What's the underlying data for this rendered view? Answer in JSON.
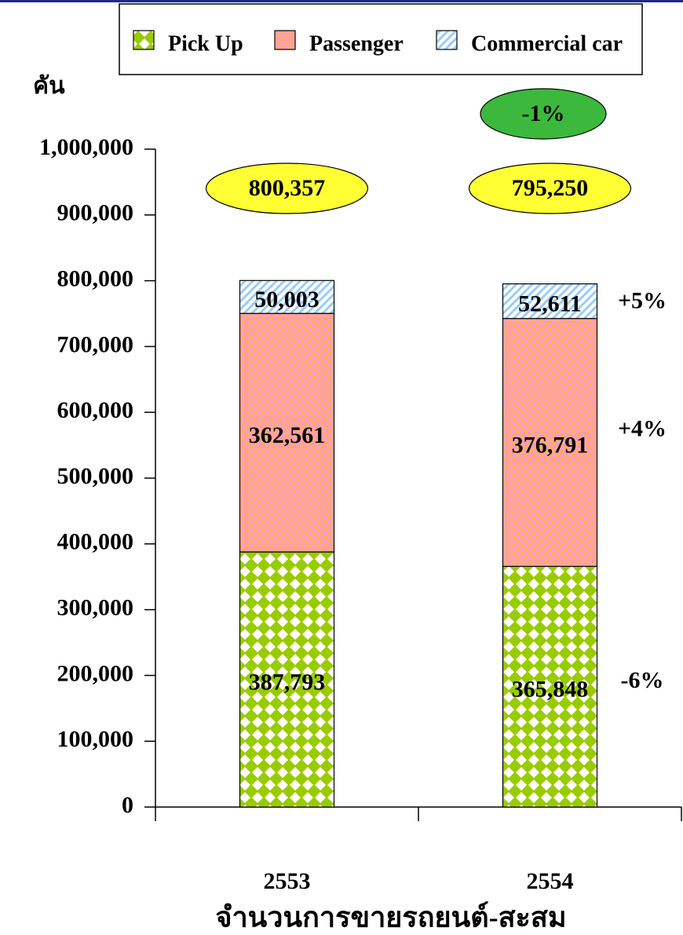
{
  "chart_data": {
    "type": "stacked_bar",
    "y_label": "คัน",
    "x_label": "จำนวนการขายรถยนต์-สะสม",
    "categories": [
      "2553",
      "2554"
    ],
    "series": [
      {
        "name": "Pick Up",
        "color": "#99cc00",
        "values": [
          387793,
          365848
        ],
        "value_labels": [
          "387,793",
          "365,848"
        ]
      },
      {
        "name": "Passenger",
        "color": "#ff99cc",
        "values": [
          362561,
          376791
        ],
        "value_labels": [
          "362,561",
          "376,791"
        ]
      },
      {
        "name": "Commercial car",
        "color": "#99ccff",
        "values": [
          50003,
          52611
        ],
        "value_labels": [
          "50,003",
          "52,611"
        ]
      }
    ],
    "totals": [
      800357,
      795250
    ],
    "total_labels": [
      "800,357",
      "795,250"
    ],
    "total_change": "-1%",
    "segment_changes": [
      "-6%",
      "+4%",
      "+5%"
    ],
    "ylim": [
      0,
      1000000
    ],
    "yticks": [
      0,
      {
        "value": 100000,
        "label": "100,000"
      },
      {
        "value": 200000,
        "label": "200,000"
      },
      {
        "value": 300000,
        "label": "300,000"
      },
      {
        "value": 400000,
        "label": "400,000"
      },
      {
        "value": 500000,
        "label": "500,000"
      },
      {
        "value": 600000,
        "label": "600,000"
      },
      {
        "value": 700000,
        "label": "700,000"
      },
      {
        "value": 800000,
        "label": "800,000"
      },
      {
        "value": 900000,
        "label": "900,000"
      },
      {
        "value": 1000000,
        "label": "1,000,000"
      }
    ],
    "legend": "top"
  }
}
